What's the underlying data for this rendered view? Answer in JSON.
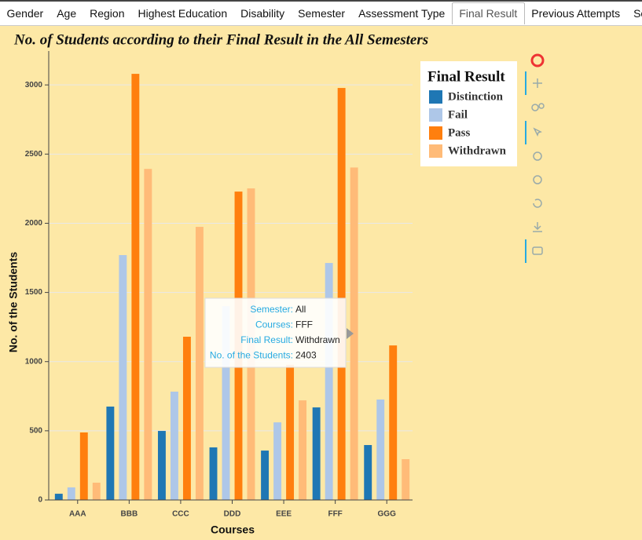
{
  "tabs": [
    "Gender",
    "Age",
    "Region",
    "Highest Education",
    "Disability",
    "Semester",
    "Assessment Type",
    "Final Result",
    "Previous Attempts",
    "Scores"
  ],
  "active_tab": 7,
  "chart_data": {
    "type": "bar",
    "title": "No. of Students according to their Final Result in the All Semesters",
    "x_label": "Courses",
    "y_label": "No. of the Students",
    "legend_title": "Final Result",
    "categories": [
      "AAA",
      "BBB",
      "CCC",
      "DDD",
      "EEE",
      "FFF",
      "GGG"
    ],
    "series": [
      {
        "name": "Distinction",
        "color": "#1f77b4",
        "values": [
          45,
          675,
          499,
          380,
          357,
          669,
          397
        ]
      },
      {
        "name": "Fail",
        "color": "#aec7e8",
        "values": [
          91,
          1770,
          783,
          1400,
          561,
          1713,
          726
        ]
      },
      {
        "name": "Pass",
        "color": "#ff7f0e",
        "values": [
          488,
          3080,
          1180,
          2229,
          977,
          2978,
          1117
        ]
      },
      {
        "name": "Withdrawn",
        "color": "#ffbb78",
        "values": [
          125,
          2393,
          1974,
          2252,
          720,
          2403,
          295
        ]
      }
    ],
    "ylim": [
      0,
      3245
    ],
    "yticks": [
      0,
      500,
      1000,
      1500,
      2000,
      2500,
      3000
    ],
    "grid": true,
    "tooltip": [
      {
        "label": "Semester:",
        "value": "All"
      },
      {
        "label": "Courses:",
        "value": "FFF"
      },
      {
        "label": "Final Result:",
        "value": "Withdrawn"
      },
      {
        "label": "No. of the Students:",
        "value": "2403"
      }
    ]
  }
}
